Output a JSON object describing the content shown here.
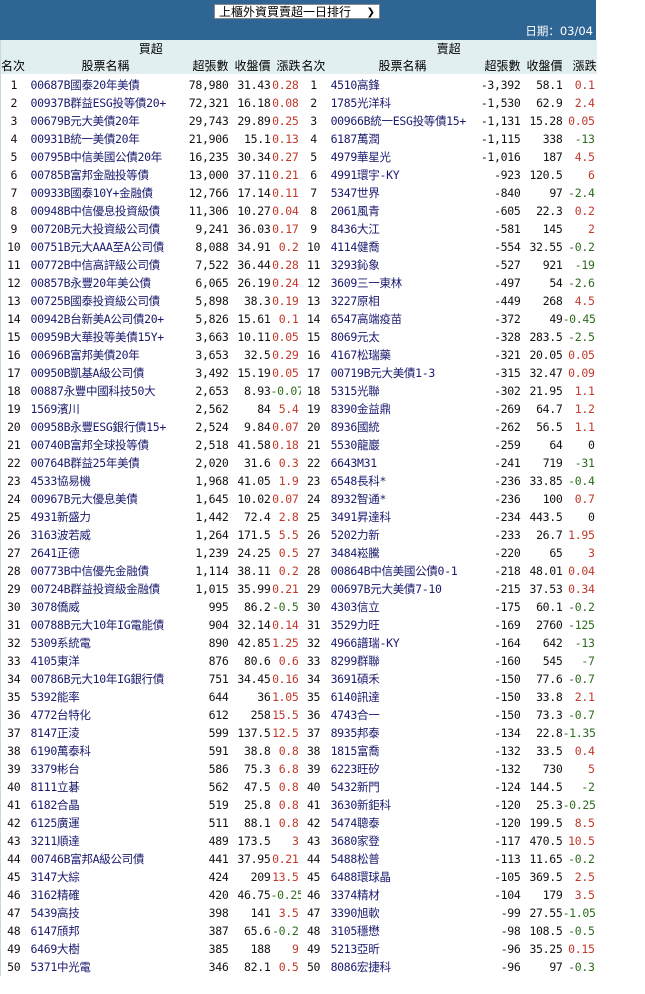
{
  "header": {
    "selector_value": "上櫃外資買賣超一日排行",
    "date_label": "日期：03/04"
  },
  "table": {
    "buy_title": "買超",
    "sell_title": "賣超",
    "columns": [
      "名次",
      "股票名稱",
      "超張數",
      "收盤價",
      "漲跌"
    ],
    "colors": {
      "up": "#c0392b",
      "down": "#2e6b1e",
      "header_bg": "#2e6592",
      "subheader_bg": "#e2eff0",
      "name": "#1a1a6e"
    },
    "buy": [
      [
        "1",
        "00687B國泰20年美債",
        "78,980",
        "31.43",
        "0.28"
      ],
      [
        "2",
        "00937B群益ESG投等債20+",
        "72,321",
        "16.18",
        "0.08"
      ],
      [
        "3",
        "00679B元大美債20年",
        "29,743",
        "29.89",
        "0.25"
      ],
      [
        "4",
        "00931B統一美債20年",
        "21,906",
        "15.1",
        "0.13"
      ],
      [
        "5",
        "00795B中信美國公債20年",
        "16,235",
        "30.34",
        "0.27"
      ],
      [
        "6",
        "00785B富邦金融投等債",
        "13,000",
        "37.11",
        "0.21"
      ],
      [
        "7",
        "00933B國泰10Y+金融債",
        "12,766",
        "17.14",
        "0.11"
      ],
      [
        "8",
        "00948B中信優息投資級債",
        "11,306",
        "10.27",
        "0.04"
      ],
      [
        "9",
        "00720B元大投資級公司債",
        "9,241",
        "36.03",
        "0.17"
      ],
      [
        "10",
        "00751B元大AAA至A公司債",
        "8,088",
        "34.91",
        "0.2"
      ],
      [
        "11",
        "00772B中信高評級公司債",
        "7,522",
        "36.44",
        "0.28"
      ],
      [
        "12",
        "00857B永豐20年美公債",
        "6,065",
        "26.19",
        "0.24"
      ],
      [
        "13",
        "00725B國泰投資級公司債",
        "5,898",
        "38.3",
        "0.19"
      ],
      [
        "14",
        "00942B台新美A公司債20+",
        "5,826",
        "15.61",
        "0.1"
      ],
      [
        "15",
        "00959B大華投等美債15Y+",
        "3,663",
        "10.11",
        "0.05"
      ],
      [
        "16",
        "00696B富邦美債20年",
        "3,653",
        "32.5",
        "0.29"
      ],
      [
        "17",
        "00950B凱基A級公司債",
        "3,492",
        "15.19",
        "0.05"
      ],
      [
        "18",
        "00887永豐中國科技50大",
        "2,653",
        "8.93",
        "-0.07"
      ],
      [
        "19",
        "1569濱川",
        "2,562",
        "84",
        "5.4"
      ],
      [
        "20",
        "00958B永豐ESG銀行債15+",
        "2,524",
        "9.84",
        "0.07"
      ],
      [
        "21",
        "00740B富邦全球投等債",
        "2,518",
        "41.58",
        "0.18"
      ],
      [
        "22",
        "00764B群益25年美債",
        "2,020",
        "31.6",
        "0.3"
      ],
      [
        "23",
        "4533協易機",
        "1,968",
        "41.05",
        "1.9"
      ],
      [
        "24",
        "00967B元大優息美債",
        "1,645",
        "10.02",
        "0.07"
      ],
      [
        "25",
        "4931新盛力",
        "1,442",
        "72.4",
        "2.8"
      ],
      [
        "26",
        "3163波若威",
        "1,264",
        "171.5",
        "5.5"
      ],
      [
        "27",
        "2641正德",
        "1,239",
        "24.25",
        "0.5"
      ],
      [
        "28",
        "00773B中信優先金融債",
        "1,114",
        "38.11",
        "0.2"
      ],
      [
        "29",
        "00724B群益投資級金融債",
        "1,015",
        "35.99",
        "0.21"
      ],
      [
        "30",
        "3078僑威",
        "995",
        "86.2",
        "-0.5"
      ],
      [
        "31",
        "00788B元大10年IG電能債",
        "904",
        "32.14",
        "0.14"
      ],
      [
        "32",
        "5309系統電",
        "890",
        "42.85",
        "1.25"
      ],
      [
        "33",
        "4105東洋",
        "876",
        "80.6",
        "0.6"
      ],
      [
        "34",
        "00786B元大10年IG銀行債",
        "751",
        "34.45",
        "0.16"
      ],
      [
        "35",
        "5392能率",
        "644",
        "36",
        "1.05"
      ],
      [
        "36",
        "4772台特化",
        "612",
        "258",
        "15.5"
      ],
      [
        "37",
        "8147正淩",
        "599",
        "137.5",
        "12.5"
      ],
      [
        "38",
        "6190萬泰科",
        "591",
        "38.8",
        "0.8"
      ],
      [
        "39",
        "3379彬台",
        "586",
        "75.3",
        "6.8"
      ],
      [
        "40",
        "8111立碁",
        "562",
        "47.5",
        "0.8"
      ],
      [
        "41",
        "6182合晶",
        "519",
        "25.8",
        "0.8"
      ],
      [
        "42",
        "6125廣運",
        "511",
        "88.1",
        "0.8"
      ],
      [
        "43",
        "3211順達",
        "489",
        "173.5",
        "3"
      ],
      [
        "44",
        "00746B富邦A級公司債",
        "441",
        "37.95",
        "0.21"
      ],
      [
        "45",
        "3147大綜",
        "424",
        "209",
        "13.5"
      ],
      [
        "46",
        "3162精確",
        "420",
        "46.75",
        "-0.25"
      ],
      [
        "47",
        "5439高技",
        "398",
        "141",
        "3.5"
      ],
      [
        "48",
        "6147頎邦",
        "387",
        "65.6",
        "-0.2"
      ],
      [
        "49",
        "6469大樹",
        "385",
        "188",
        "9"
      ],
      [
        "50",
        "5371中光電",
        "346",
        "82.1",
        "0.5"
      ]
    ],
    "sell": [
      [
        "1",
        "4510高鋒",
        "-3,392",
        "58.1",
        "0.1"
      ],
      [
        "2",
        "1785光洋科",
        "-1,530",
        "62.9",
        "2.4"
      ],
      [
        "3",
        "00966B統一ESG投等債15+",
        "-1,131",
        "15.28",
        "0.05"
      ],
      [
        "4",
        "6187萬潤",
        "-1,115",
        "338",
        "-13"
      ],
      [
        "5",
        "4979華星光",
        "-1,016",
        "187",
        "4.5"
      ],
      [
        "6",
        "4991環宇-KY",
        "-923",
        "120.5",
        "6"
      ],
      [
        "7",
        "5347世界",
        "-840",
        "97",
        "-2.4"
      ],
      [
        "8",
        "2061風青",
        "-605",
        "22.3",
        "0.2"
      ],
      [
        "9",
        "8436大江",
        "-581",
        "145",
        "2"
      ],
      [
        "10",
        "4114健喬",
        "-554",
        "32.55",
        "-0.2"
      ],
      [
        "11",
        "3293鈊象",
        "-527",
        "921",
        "-19"
      ],
      [
        "12",
        "3609三一東林",
        "-497",
        "54",
        "-2.6"
      ],
      [
        "13",
        "3227原相",
        "-449",
        "268",
        "4.5"
      ],
      [
        "14",
        "6547高端疫苗",
        "-372",
        "49",
        "-0.45"
      ],
      [
        "15",
        "8069元太",
        "-328",
        "283.5",
        "-2.5"
      ],
      [
        "16",
        "4167松瑞藥",
        "-321",
        "20.05",
        "0.05"
      ],
      [
        "17",
        "00719B元大美債1-3",
        "-315",
        "32.47",
        "0.09"
      ],
      [
        "18",
        "5315光聯",
        "-302",
        "21.95",
        "1.1"
      ],
      [
        "19",
        "8390金益鼎",
        "-269",
        "64.7",
        "1.2"
      ],
      [
        "20",
        "8936國統",
        "-262",
        "56.5",
        "1.1"
      ],
      [
        "21",
        "5530龍巖",
        "-259",
        "64",
        "0"
      ],
      [
        "22",
        "6643M31",
        "-241",
        "719",
        "-31"
      ],
      [
        "23",
        "6548長科*",
        "-236",
        "33.85",
        "-0.4"
      ],
      [
        "24",
        "8932智通*",
        "-236",
        "100",
        "0.7"
      ],
      [
        "25",
        "3491昇達科",
        "-234",
        "443.5",
        "0"
      ],
      [
        "26",
        "5202力新",
        "-233",
        "26.7",
        "1.95"
      ],
      [
        "27",
        "3484崧騰",
        "-220",
        "65",
        "3"
      ],
      [
        "28",
        "00864B中信美國公債0-1",
        "-218",
        "48.01",
        "0.04"
      ],
      [
        "29",
        "00697B元大美債7-10",
        "-215",
        "37.53",
        "0.34"
      ],
      [
        "30",
        "4303信立",
        "-175",
        "60.1",
        "-0.2"
      ],
      [
        "31",
        "3529力旺",
        "-169",
        "2760",
        "-125"
      ],
      [
        "32",
        "4966譜瑞-KY",
        "-164",
        "642",
        "-13"
      ],
      [
        "33",
        "8299群聯",
        "-160",
        "545",
        "-7"
      ],
      [
        "34",
        "3691碩禾",
        "-150",
        "77.6",
        "-0.7"
      ],
      [
        "35",
        "6140訊達",
        "-150",
        "33.8",
        "2.1"
      ],
      [
        "36",
        "4743合一",
        "-150",
        "73.3",
        "-0.7"
      ],
      [
        "37",
        "8935邦泰",
        "-134",
        "22.8",
        "-1.35"
      ],
      [
        "38",
        "1815富喬",
        "-132",
        "33.5",
        "0.4"
      ],
      [
        "39",
        "6223旺矽",
        "-132",
        "730",
        "5"
      ],
      [
        "40",
        "5432新門",
        "-124",
        "144.5",
        "-2"
      ],
      [
        "41",
        "3630新鉅科",
        "-120",
        "25.3",
        "-0.25"
      ],
      [
        "42",
        "5474聰泰",
        "-120",
        "199.5",
        "8.5"
      ],
      [
        "43",
        "3680家登",
        "-117",
        "470.5",
        "10.5"
      ],
      [
        "44",
        "5488松普",
        "-113",
        "11.65",
        "-0.2"
      ],
      [
        "45",
        "6488環球晶",
        "-105",
        "369.5",
        "2.5"
      ],
      [
        "46",
        "3374精材",
        "-104",
        "179",
        "3.5"
      ],
      [
        "47",
        "3390旭軟",
        "-99",
        "27.55",
        "-1.05"
      ],
      [
        "48",
        "3105穩懋",
        "-98",
        "108.5",
        "-0.5"
      ],
      [
        "49",
        "5213亞昕",
        "-96",
        "35.25",
        "0.15"
      ],
      [
        "50",
        "8086宏捷科",
        "-96",
        "97",
        "-0.3"
      ]
    ]
  }
}
